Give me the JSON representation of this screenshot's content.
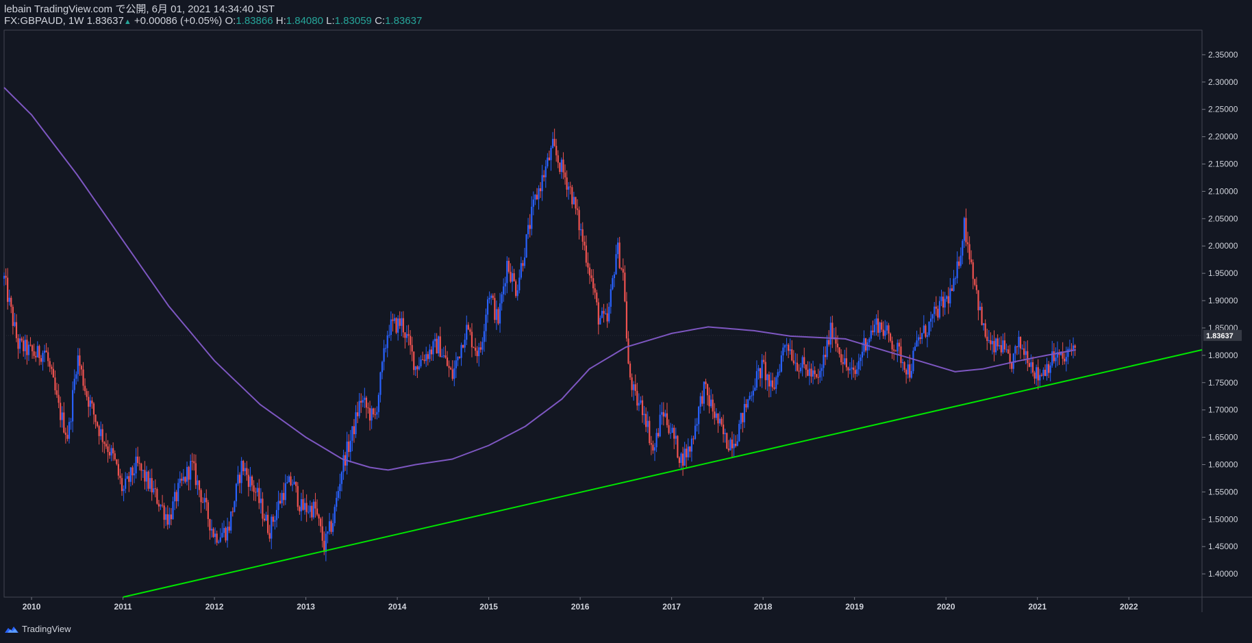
{
  "header": {
    "publish_line": "lebain TradingView.com で公開, 6月 01, 2021 14:34:40 JST",
    "symbol": "FX:GBPAUD, 1W",
    "last": "1.83637",
    "arrow": "▲",
    "change": "+0.00086 (+0.05%)",
    "o_label": "O:",
    "o_value": "1.83866",
    "h_label": "H:",
    "h_value": "1.84080",
    "l_label": "L:",
    "l_value": "1.83059",
    "c_label": "C:",
    "c_value": "1.83637"
  },
  "footer": {
    "brand": "TradingView",
    "icon": "tradingview-logo-icon"
  },
  "colors": {
    "background": "#131722",
    "up_candle": "#2962ff",
    "down_candle": "#ef5350",
    "moving_average": "#7e57c2",
    "trendline": "#00e600",
    "price_tag": "#363a45",
    "text": "#d1d4dc"
  },
  "chart_data": {
    "type": "candlestick",
    "symbol": "FX:GBPAUD",
    "interval": "1W",
    "x_range": [
      2009.7,
      2022.8
    ],
    "y_range": [
      1.3575,
      2.395
    ],
    "x_tick_labels": [
      "2010",
      "2011",
      "2012",
      "2013",
      "2014",
      "2015",
      "2016",
      "2017",
      "2018",
      "2019",
      "2020",
      "2021",
      "2022"
    ],
    "y_tick_labels": [
      "2.35000",
      "2.30000",
      "2.25000",
      "2.20000",
      "2.15000",
      "2.10000",
      "2.05000",
      "2.00000",
      "1.95000",
      "1.90000",
      "1.85000",
      "1.80000",
      "1.75000",
      "1.70000",
      "1.65000",
      "1.60000",
      "1.55000",
      "1.50000",
      "1.45000",
      "1.40000"
    ],
    "last_price_label": "1.83637",
    "last_price": 1.83637,
    "price_path": [
      [
        2009.7,
        1.94
      ],
      [
        2009.85,
        1.82
      ],
      [
        2010.05,
        1.8
      ],
      [
        2010.15,
        1.81
      ],
      [
        2010.3,
        1.7
      ],
      [
        2010.4,
        1.65
      ],
      [
        2010.5,
        1.8
      ],
      [
        2010.6,
        1.73
      ],
      [
        2010.75,
        1.66
      ],
      [
        2010.9,
        1.61
      ],
      [
        2011.0,
        1.55
      ],
      [
        2011.15,
        1.6
      ],
      [
        2011.3,
        1.56
      ],
      [
        2011.5,
        1.5
      ],
      [
        2011.6,
        1.55
      ],
      [
        2011.75,
        1.6
      ],
      [
        2011.9,
        1.52
      ],
      [
        2012.0,
        1.47
      ],
      [
        2012.15,
        1.48
      ],
      [
        2012.3,
        1.6
      ],
      [
        2012.45,
        1.55
      ],
      [
        2012.6,
        1.48
      ],
      [
        2012.75,
        1.55
      ],
      [
        2012.85,
        1.57
      ],
      [
        2012.95,
        1.52
      ],
      [
        2013.1,
        1.52
      ],
      [
        2013.2,
        1.45
      ],
      [
        2013.3,
        1.5
      ],
      [
        2013.4,
        1.6
      ],
      [
        2013.5,
        1.65
      ],
      [
        2013.6,
        1.72
      ],
      [
        2013.75,
        1.68
      ],
      [
        2013.9,
        1.85
      ],
      [
        2014.05,
        1.86
      ],
      [
        2014.2,
        1.78
      ],
      [
        2014.3,
        1.8
      ],
      [
        2014.45,
        1.82
      ],
      [
        2014.6,
        1.76
      ],
      [
        2014.75,
        1.85
      ],
      [
        2014.9,
        1.8
      ],
      [
        2015.0,
        1.92
      ],
      [
        2015.1,
        1.86
      ],
      [
        2015.2,
        1.97
      ],
      [
        2015.3,
        1.92
      ],
      [
        2015.4,
        2.0
      ],
      [
        2015.5,
        2.08
      ],
      [
        2015.6,
        2.13
      ],
      [
        2015.7,
        2.18
      ],
      [
        2015.8,
        2.14
      ],
      [
        2015.9,
        2.1
      ],
      [
        2016.0,
        2.03
      ],
      [
        2016.1,
        1.96
      ],
      [
        2016.2,
        1.87
      ],
      [
        2016.3,
        1.86
      ],
      [
        2016.4,
        2.0
      ],
      [
        2016.48,
        1.94
      ],
      [
        2016.52,
        1.78
      ],
      [
        2016.6,
        1.72
      ],
      [
        2016.7,
        1.7
      ],
      [
        2016.8,
        1.62
      ],
      [
        2016.9,
        1.7
      ],
      [
        2017.0,
        1.66
      ],
      [
        2017.1,
        1.61
      ],
      [
        2017.2,
        1.63
      ],
      [
        2017.35,
        1.74
      ],
      [
        2017.5,
        1.68
      ],
      [
        2017.6,
        1.64
      ],
      [
        2017.7,
        1.65
      ],
      [
        2017.8,
        1.7
      ],
      [
        2017.9,
        1.75
      ],
      [
        2018.0,
        1.78
      ],
      [
        2018.1,
        1.73
      ],
      [
        2018.25,
        1.83
      ],
      [
        2018.35,
        1.79
      ],
      [
        2018.5,
        1.77
      ],
      [
        2018.6,
        1.75
      ],
      [
        2018.75,
        1.85
      ],
      [
        2018.9,
        1.78
      ],
      [
        2019.0,
        1.76
      ],
      [
        2019.1,
        1.82
      ],
      [
        2019.25,
        1.86
      ],
      [
        2019.35,
        1.84
      ],
      [
        2019.5,
        1.8
      ],
      [
        2019.6,
        1.77
      ],
      [
        2019.7,
        1.83
      ],
      [
        2019.8,
        1.85
      ],
      [
        2019.9,
        1.88
      ],
      [
        2020.0,
        1.9
      ],
      [
        2020.1,
        1.93
      ],
      [
        2020.2,
        2.04
      ],
      [
        2020.3,
        1.95
      ],
      [
        2020.4,
        1.85
      ],
      [
        2020.5,
        1.81
      ],
      [
        2020.6,
        1.82
      ],
      [
        2020.7,
        1.78
      ],
      [
        2020.8,
        1.82
      ],
      [
        2020.9,
        1.8
      ],
      [
        2021.0,
        1.76
      ],
      [
        2021.1,
        1.78
      ],
      [
        2021.2,
        1.8
      ],
      [
        2021.3,
        1.79
      ],
      [
        2021.4,
        1.82
      ],
      [
        2021.42,
        1.8364
      ]
    ],
    "moving_average_path": [
      [
        2009.7,
        2.29
      ],
      [
        2010.0,
        2.24
      ],
      [
        2010.5,
        2.13
      ],
      [
        2011.0,
        2.01
      ],
      [
        2011.5,
        1.89
      ],
      [
        2012.0,
        1.79
      ],
      [
        2012.5,
        1.71
      ],
      [
        2013.0,
        1.65
      ],
      [
        2013.4,
        1.61
      ],
      [
        2013.7,
        1.595
      ],
      [
        2013.9,
        1.59
      ],
      [
        2014.2,
        1.6
      ],
      [
        2014.6,
        1.61
      ],
      [
        2015.0,
        1.635
      ],
      [
        2015.4,
        1.67
      ],
      [
        2015.8,
        1.72
      ],
      [
        2016.1,
        1.775
      ],
      [
        2016.5,
        1.815
      ],
      [
        2017.0,
        1.84
      ],
      [
        2017.4,
        1.852
      ],
      [
        2017.9,
        1.845
      ],
      [
        2018.3,
        1.835
      ],
      [
        2018.9,
        1.83
      ],
      [
        2019.4,
        1.805
      ],
      [
        2019.8,
        1.785
      ],
      [
        2020.1,
        1.77
      ],
      [
        2020.4,
        1.775
      ],
      [
        2020.8,
        1.79
      ],
      [
        2021.1,
        1.8
      ],
      [
        2021.42,
        1.81
      ]
    ],
    "trendline": {
      "from": [
        2011.0,
        1.3575
      ],
      "to": [
        2022.8,
        1.81
      ]
    },
    "grid": false,
    "legend": "none"
  }
}
